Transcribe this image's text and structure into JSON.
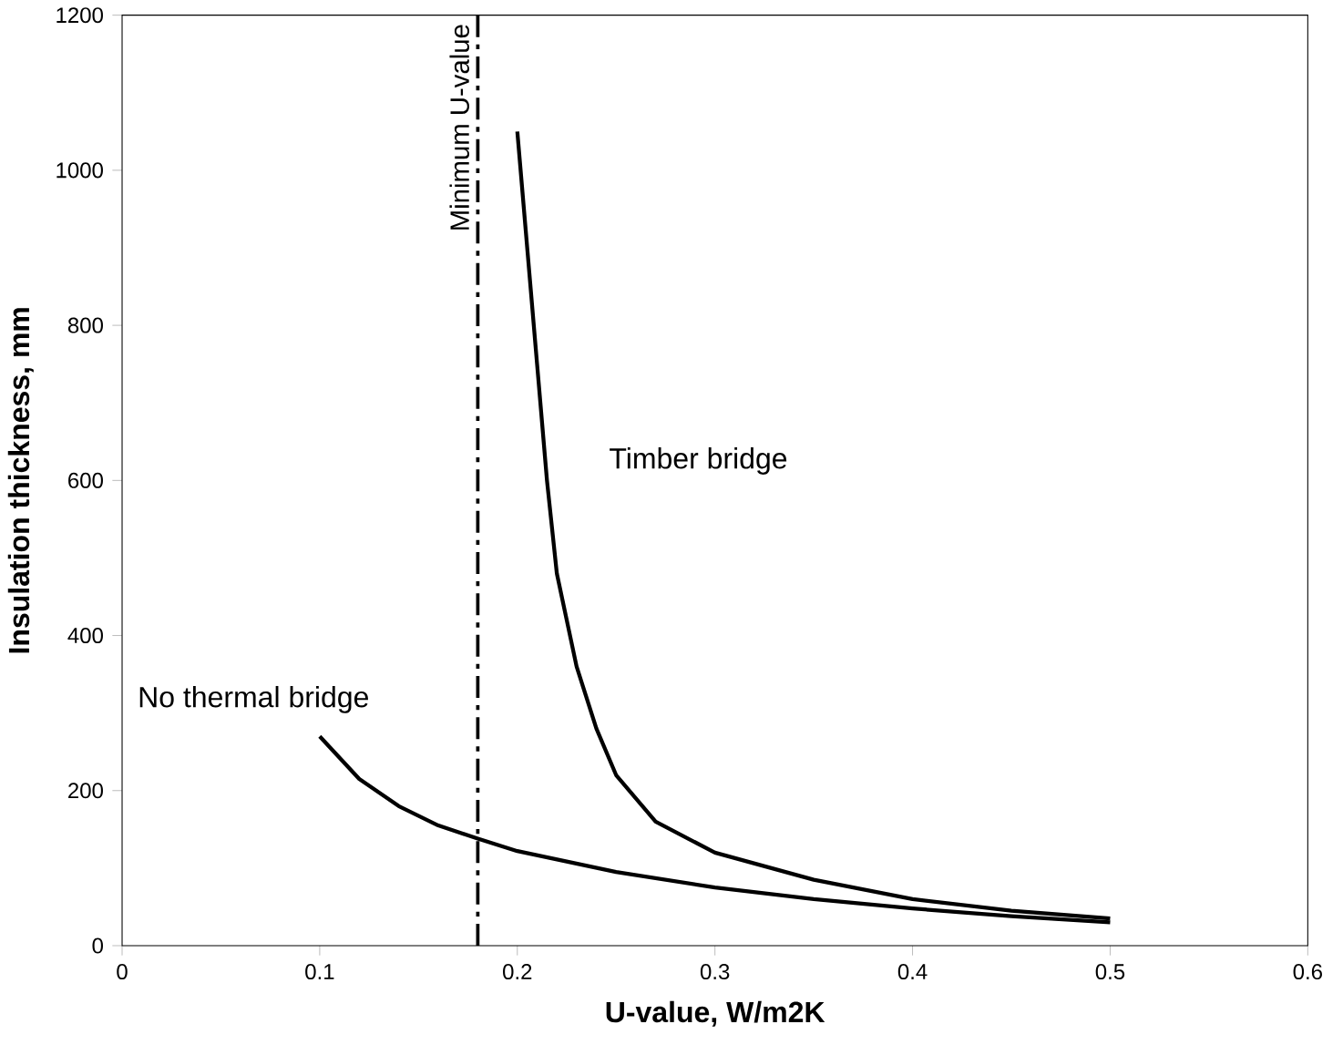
{
  "chart_data": {
    "type": "line",
    "xlabel": "U-value,  W/m2K",
    "ylabel": "Insulation thickness,  mm",
    "series": [
      {
        "name": "No thermal bridge",
        "color": "#000000",
        "x": [
          0.1,
          0.12,
          0.14,
          0.16,
          0.18,
          0.2,
          0.25,
          0.3,
          0.35,
          0.4,
          0.45,
          0.5
        ],
        "values": [
          270,
          215,
          180,
          155,
          138,
          122,
          95,
          75,
          60,
          48,
          38,
          30
        ]
      },
      {
        "name": "Timber bridge",
        "color": "#000000",
        "x": [
          0.2,
          0.205,
          0.21,
          0.215,
          0.22,
          0.23,
          0.24,
          0.25,
          0.27,
          0.3,
          0.35,
          0.4,
          0.45,
          0.5
        ],
        "values": [
          1050,
          900,
          750,
          600,
          480,
          360,
          280,
          220,
          160,
          120,
          85,
          60,
          45,
          35
        ]
      }
    ],
    "ref_lines": [
      {
        "axis": "x",
        "value": 0.18,
        "label": "Minimum U-value",
        "color": "#000000",
        "line_style": "dashdot"
      }
    ],
    "xlim": [
      0,
      0.6
    ],
    "ylim": [
      0,
      1200
    ],
    "xticks": [
      0,
      0.1,
      0.2,
      0.3,
      0.4,
      0.5,
      0.6
    ],
    "yticks": [
      0,
      200,
      400,
      600,
      800,
      1000,
      1200
    ],
    "grid": false,
    "marker": "none",
    "line_style": "solid"
  }
}
